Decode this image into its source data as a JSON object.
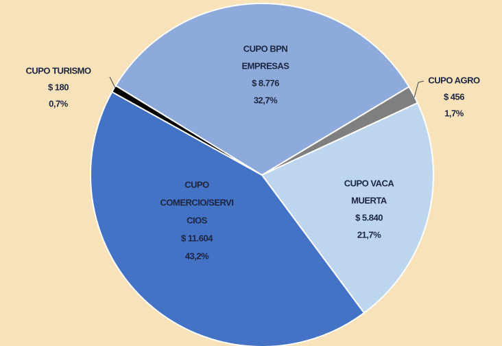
{
  "chart_data": {
    "type": "pie",
    "categories": [
      [
        "CUPO BPN",
        "EMPRESAS"
      ],
      [
        "CUPO AGRO"
      ],
      [
        "CUPO VACA",
        "MUERTA"
      ],
      [
        "CUPO",
        "COMERCIO/SERVI",
        "CIOS"
      ],
      [
        "CUPO TURISMO"
      ]
    ],
    "values": [
      8776,
      456,
      5840,
      11604,
      180
    ],
    "value_labels": [
      "$ 8.776",
      "$ 456",
      "$ 5.840",
      "$ 11.604",
      "$ 180"
    ],
    "percent": [
      32.7,
      1.7,
      21.7,
      43.2,
      0.7
    ],
    "percent_labels": [
      "32,7%",
      "1,7%",
      "21,7%",
      "43,2%",
      "0,7%"
    ],
    "colors": [
      "#8eaadb",
      "#7f7f7f",
      "#bdd6ee",
      "#4472c4",
      "#000000"
    ]
  }
}
